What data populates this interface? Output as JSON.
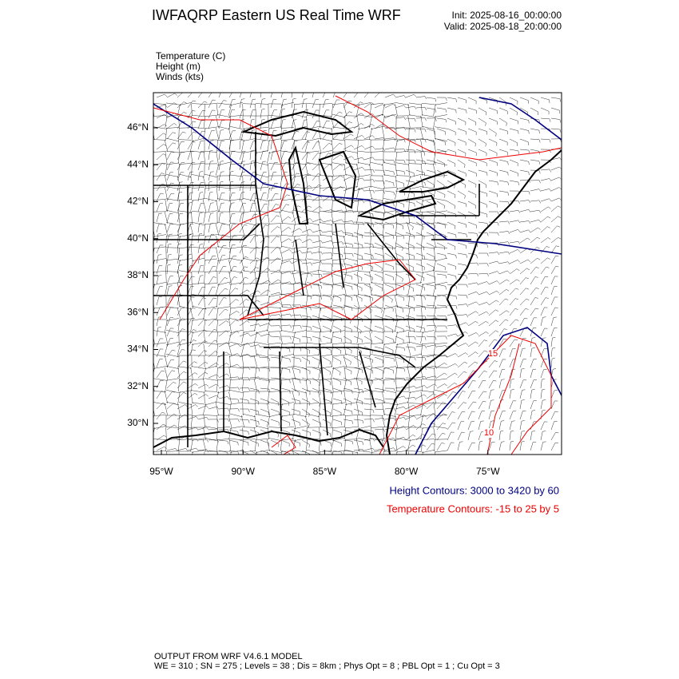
{
  "header": {
    "title": "IWFAQRP Eastern US Real Time WRF",
    "init": "Init: 2025-08-16_00:00:00",
    "valid": "Valid: 2025-08-18_20:00:00"
  },
  "fields": [
    "Temperature   (C)",
    "Height   (m)",
    "Winds   (kts)"
  ],
  "map": {
    "lat_labels": [
      "46°N",
      "44°N",
      "42°N",
      "40°N",
      "38°N",
      "36°N",
      "34°N",
      "32°N",
      "30°N"
    ],
    "lon_labels": [
      "95°W",
      "90°W",
      "85°W",
      "80°W",
      "75°W"
    ],
    "contour_labels": [
      "15",
      "10"
    ]
  },
  "legend": {
    "height": "Height Contours: 3000 to 3420 by 60",
    "temperature": "Temperature Contours: -15 to 25 by 5"
  },
  "footer": {
    "line1": "OUTPUT FROM WRF V4.6.1 MODEL",
    "line2": "WE = 310 ; SN = 275 ; Levels = 38 ; Dis = 8km ; Phys Opt = 8 ; PBL Opt = 1 ; Cu Opt = 3"
  }
}
